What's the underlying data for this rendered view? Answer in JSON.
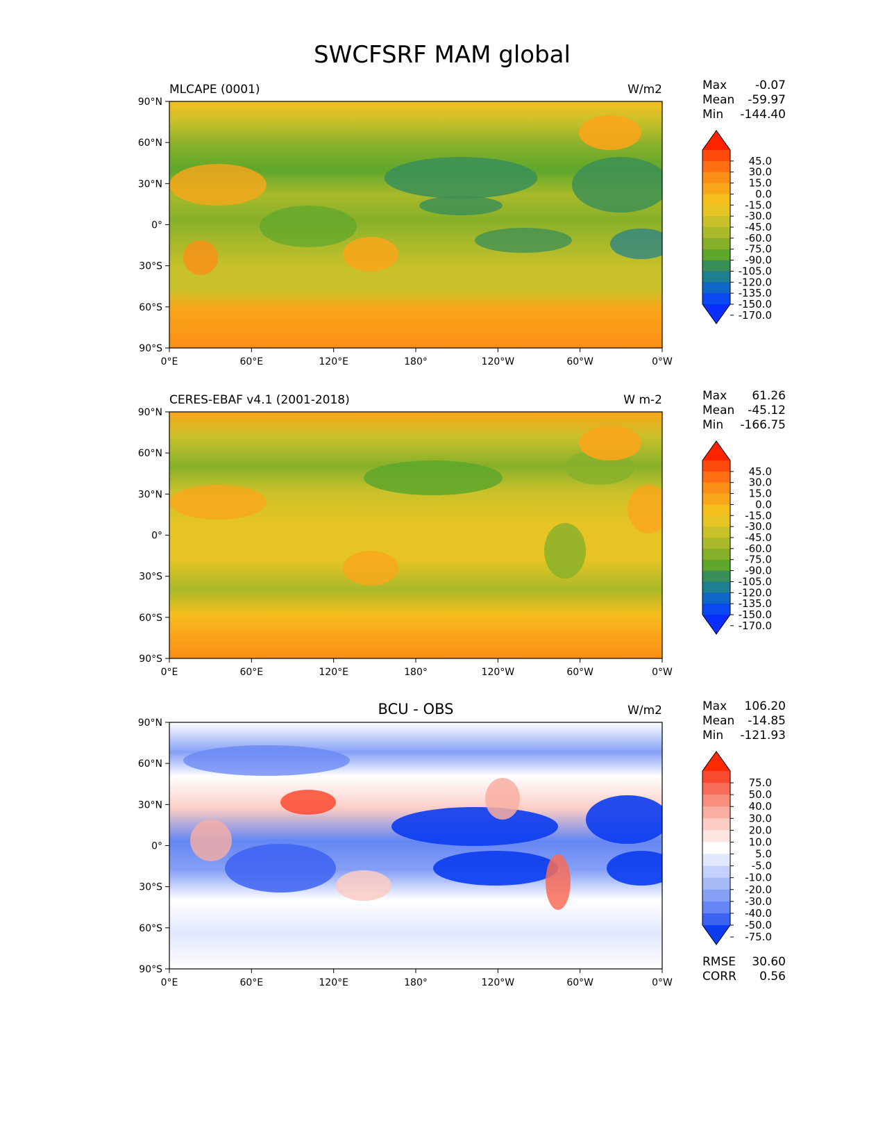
{
  "figure": {
    "title": "SWCFSRF MAM global"
  },
  "axes": {
    "lat_ticks": [
      "90°N",
      "60°N",
      "30°N",
      "0°",
      "30°S",
      "60°S",
      "90°S"
    ],
    "lon_ticks": [
      "0°E",
      "60°E",
      "120°E",
      "180°",
      "120°W",
      "60°W",
      "0°W"
    ]
  },
  "panels": [
    {
      "title_left": "MLCAPE (0001)",
      "title_center": "",
      "units": "W/m2",
      "stats": [
        {
          "label": "Max",
          "value": "-0.07"
        },
        {
          "label": "Mean",
          "value": "-59.97"
        },
        {
          "label": "Min",
          "value": "-144.40"
        }
      ],
      "colorbar": {
        "levels": [
          "45.0",
          "30.0",
          "15.0",
          "0.0",
          "-15.0",
          "-30.0",
          "-45.0",
          "-60.0",
          "-75.0",
          "-90.0",
          "-105.0",
          "-120.0",
          "-135.0",
          "-150.0",
          "-170.0"
        ],
        "colors": [
          "#ff2200",
          "#ff4a0e",
          "#ff6e12",
          "#fb8e16",
          "#faa61a",
          "#f5bf1e",
          "#e5c424",
          "#c9c12a",
          "#aab92a",
          "#86b02a",
          "#5ea72c",
          "#3a8f58",
          "#1e7f90",
          "#0f66c6",
          "#0a48f0",
          "#0a2eff"
        ]
      },
      "extra_stats": []
    },
    {
      "title_left": "CERES-EBAF v4.1 (2001-2018)",
      "title_center": "",
      "units": "W m-2",
      "stats": [
        {
          "label": "Max",
          "value": "61.26"
        },
        {
          "label": "Mean",
          "value": "-45.12"
        },
        {
          "label": "Min",
          "value": "-166.75"
        }
      ],
      "colorbar": {
        "levels": [
          "45.0",
          "30.0",
          "15.0",
          "0.0",
          "-15.0",
          "-30.0",
          "-45.0",
          "-60.0",
          "-75.0",
          "-90.0",
          "-105.0",
          "-120.0",
          "-135.0",
          "-150.0",
          "-170.0"
        ],
        "colors": [
          "#ff2200",
          "#ff4a0e",
          "#ff6e12",
          "#fb8e16",
          "#faa61a",
          "#f5bf1e",
          "#e5c424",
          "#c9c12a",
          "#aab92a",
          "#86b02a",
          "#5ea72c",
          "#3a8f58",
          "#1e7f90",
          "#0f66c6",
          "#0a48f0",
          "#0a2eff"
        ]
      },
      "extra_stats": []
    },
    {
      "title_left": "",
      "title_center": "BCU - OBS",
      "units": "W/m2",
      "stats": [
        {
          "label": "Max",
          "value": "106.20"
        },
        {
          "label": "Mean",
          "value": "-14.85"
        },
        {
          "label": "Min",
          "value": "-121.93"
        }
      ],
      "colorbar": {
        "levels": [
          "75.0",
          "50.0",
          "40.0",
          "30.0",
          "20.0",
          "10.0",
          "5.0",
          "-5.0",
          "-10.0",
          "-20.0",
          "-30.0",
          "-40.0",
          "-50.0",
          "-75.0"
        ],
        "colors": [
          "#ff2a00",
          "#fb4a30",
          "#f86c58",
          "#f88e7e",
          "#f9aea2",
          "#fbcdc4",
          "#fde6e1",
          "#ffffff",
          "#e1e8fd",
          "#c4d2fb",
          "#a6baf8",
          "#86a0f6",
          "#6586f4",
          "#3d63f2",
          "#0b3cf0"
        ]
      },
      "extra_stats": [
        {
          "label": "RMSE",
          "value": "30.60"
        },
        {
          "label": "CORR",
          "value": "0.56"
        }
      ]
    }
  ]
}
